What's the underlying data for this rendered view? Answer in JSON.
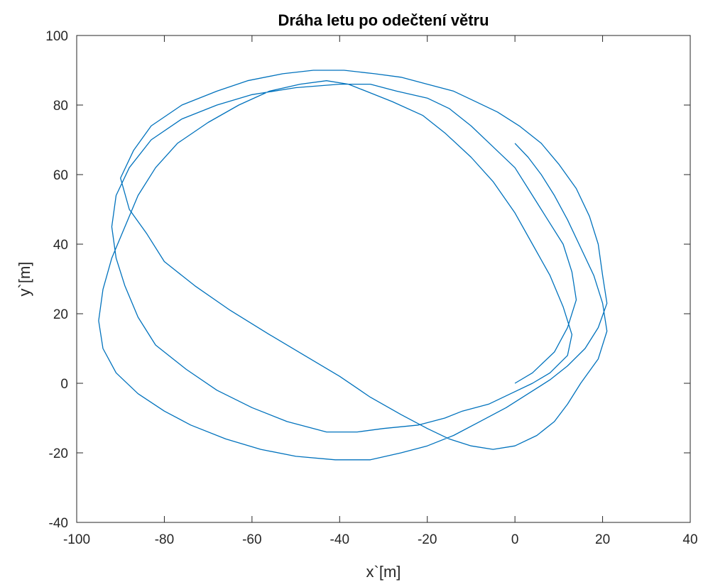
{
  "chart_data": {
    "type": "line",
    "title": "Dráha letu po odečtení větru",
    "xlabel": "x`[m]",
    "ylabel": "y`[m]",
    "xlim": [
      -100,
      40
    ],
    "ylim": [
      -40,
      100
    ],
    "xticks": [
      -100,
      -80,
      -60,
      -40,
      -20,
      0,
      20,
      40
    ],
    "yticks": [
      -40,
      -20,
      0,
      20,
      40,
      60,
      80,
      100
    ],
    "grid": false,
    "line_color": "#0072BD",
    "series": [
      {
        "x": [
          0,
          4,
          9,
          12,
          14,
          13,
          11,
          7,
          3,
          0,
          -5,
          -10,
          -15,
          -20,
          -27,
          -33,
          -40,
          -50,
          -60,
          -68,
          -76,
          -83,
          -88,
          -91,
          -92,
          -91,
          -89,
          -86,
          -82,
          -75,
          -68,
          -60,
          -52,
          -43,
          -36,
          -30,
          -22,
          -16,
          -12,
          -6,
          -1,
          4,
          8,
          12,
          13,
          11,
          8,
          4,
          0,
          -5,
          -10,
          -16,
          -21,
          -28,
          -34,
          -38,
          -43,
          -49,
          -56,
          -63,
          -70,
          -77,
          -82,
          -86,
          -89,
          -92,
          -94,
          -95,
          -94,
          -91,
          -86,
          -80,
          -74,
          -66,
          -58,
          -50,
          -41,
          -33,
          -26,
          -20,
          -14,
          -8,
          -2,
          3,
          8,
          12,
          16,
          19,
          21,
          20,
          19,
          17,
          14,
          10,
          6,
          1,
          -4,
          -9,
          -14,
          -20,
          -26,
          -32,
          -39,
          -46,
          -53,
          -61,
          -68,
          -76,
          -83,
          -87,
          -90,
          -88,
          -84,
          -80,
          -73,
          -65,
          -56,
          -48,
          -40,
          -33,
          -26,
          -20,
          -15,
          -10,
          -5,
          0,
          5,
          9,
          12,
          15,
          19,
          21,
          20,
          18,
          15,
          12,
          9,
          6,
          3,
          0
        ],
        "y": [
          0,
          3,
          9,
          16,
          24,
          32,
          40,
          48,
          56,
          62,
          68,
          74,
          79,
          82,
          84,
          86,
          86,
          85,
          83,
          80,
          76,
          70,
          62,
          54,
          45,
          36,
          28,
          19,
          11,
          4,
          -2,
          -7,
          -11,
          -14,
          -14,
          -13,
          -12,
          -10,
          -8,
          -6,
          -3,
          0,
          3,
          8,
          14,
          22,
          31,
          40,
          49,
          58,
          65,
          72,
          77,
          81,
          84,
          86,
          87,
          86,
          84,
          80,
          75,
          69,
          62,
          54,
          45,
          36,
          27,
          18,
          10,
          3,
          -3,
          -8,
          -12,
          -16,
          -19,
          -21,
          -22,
          -22,
          -20,
          -18,
          -15,
          -11,
          -7,
          -3,
          1,
          5,
          10,
          16,
          23,
          31,
          40,
          48,
          56,
          63,
          69,
          74,
          78,
          81,
          84,
          86,
          88,
          89,
          90,
          90,
          89,
          87,
          84,
          80,
          74,
          67,
          59,
          50,
          43,
          35,
          28,
          21,
          14,
          8,
          2,
          -4,
          -9,
          -13,
          -16,
          -18,
          -19,
          -18,
          -15,
          -11,
          -6,
          0,
          7,
          15,
          23,
          31,
          39,
          47,
          54,
          60,
          65,
          69
        ]
      }
    ]
  }
}
